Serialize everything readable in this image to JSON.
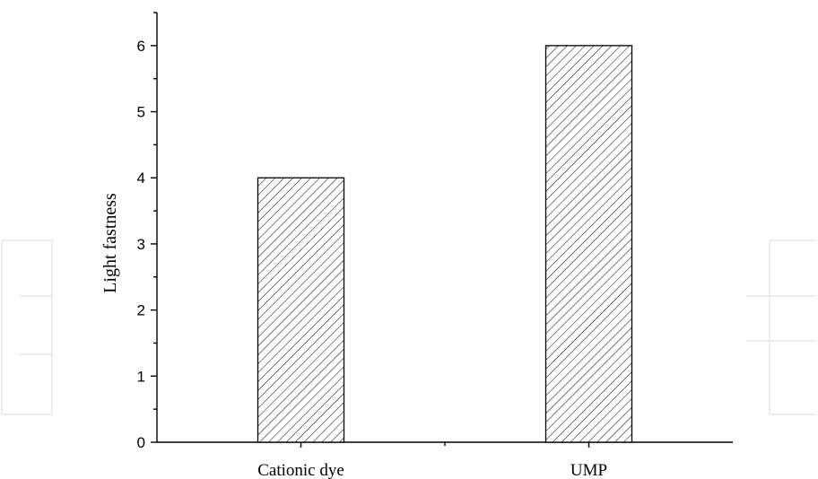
{
  "chart_data": {
    "type": "bar",
    "categories": [
      "Cationic dye",
      "UMP"
    ],
    "values": [
      4,
      6
    ],
    "title": "",
    "xlabel": "",
    "ylabel": "Light fastness",
    "ylim": [
      0,
      6.5
    ],
    "yticks": [
      0,
      1,
      2,
      3,
      4,
      5,
      6
    ],
    "bar_fill": "hatched",
    "bar_color": "#000000",
    "grid": false,
    "legend": "none"
  }
}
